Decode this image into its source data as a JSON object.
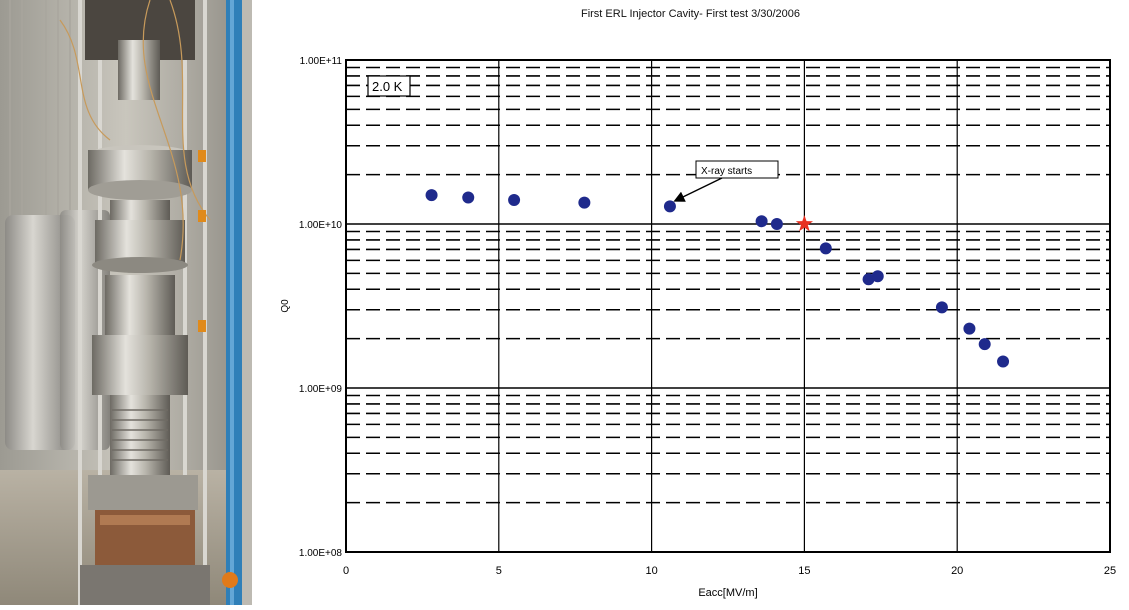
{
  "figure": {
    "photo": {
      "description_icon": "cavity-cryostat-photo"
    }
  },
  "chart_data": {
    "type": "scatter",
    "title": "First ERL Injector Cavity- First test 3/30/2006",
    "xlabel": "Eacc[MV/m]",
    "ylabel": "Q0",
    "xlim": [
      0,
      25
    ],
    "ylim": [
      100000000,
      100000000000
    ],
    "y_scale": "log",
    "x_ticks": [
      "0",
      "5",
      "10",
      "15",
      "20",
      "25"
    ],
    "y_ticks": [
      "1.00E+08",
      "1.00E+09",
      "1.00E+10",
      "1.00E+11"
    ],
    "grid": true,
    "series": [
      {
        "marker": "circle",
        "color": "#1f2a8c",
        "points": [
          [
            2.8,
            15000000000
          ],
          [
            4.0,
            14500000000
          ],
          [
            5.5,
            14000000000
          ],
          [
            7.8,
            13500000000
          ],
          [
            10.6,
            12800000000
          ],
          [
            13.6,
            10400000000
          ],
          [
            14.1,
            10000000000
          ],
          [
            15.7,
            7100000000
          ],
          [
            17.1,
            4600000000
          ],
          [
            17.4,
            4800000000
          ],
          [
            19.5,
            3100000000
          ],
          [
            20.4,
            2300000000
          ],
          [
            20.9,
            1850000000
          ],
          [
            21.5,
            1450000000
          ]
        ]
      },
      {
        "marker": "star",
        "color": "#e83020",
        "points": [
          [
            15.0,
            10000000000
          ]
        ]
      }
    ],
    "annotations": [
      {
        "text": "2.0 K"
      },
      {
        "text": "X-ray starts",
        "target": [
          10.6,
          12800000000
        ]
      }
    ]
  }
}
